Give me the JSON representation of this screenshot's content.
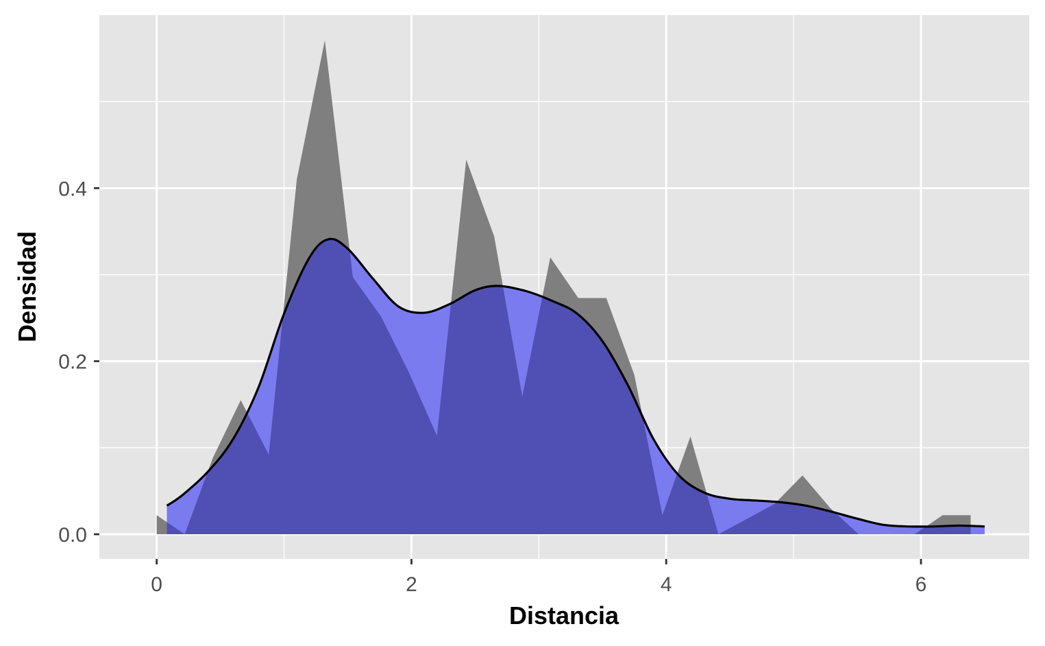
{
  "chart_data": {
    "type": "area",
    "title": "",
    "xlabel": "Distancia",
    "ylabel": "Densidad",
    "xlim": [
      -0.45,
      6.85
    ],
    "ylim": [
      -0.0285,
      0.6
    ],
    "x_ticks": [
      0,
      2,
      4,
      6
    ],
    "x_tick_labels": [
      "0",
      "2",
      "4",
      "6"
    ],
    "x_minor_ticks": [
      1,
      3,
      5
    ],
    "y_ticks": [
      0.0,
      0.2,
      0.4
    ],
    "y_tick_labels": [
      "0.0",
      "0.2",
      "0.4"
    ],
    "y_minor_ticks": [
      0.1,
      0.3,
      0.5
    ],
    "grid": true,
    "legend": "none",
    "colors": {
      "panel_background": "#e5e5e5",
      "grid": "#ffffff",
      "histogram_polygon": "#7f7f7f",
      "density_fill": "#7b7bf0",
      "overlap": "#5050b4",
      "density_line": "#000000"
    },
    "series": [
      {
        "type": "area",
        "points": [
          [
            0.0,
            0.0
          ],
          [
            0.0,
            0.022
          ],
          [
            0.22,
            0.0
          ],
          [
            0.44,
            0.088
          ],
          [
            0.66,
            0.155
          ],
          [
            0.88,
            0.092
          ],
          [
            1.1,
            0.41
          ],
          [
            1.32,
            0.571
          ],
          [
            1.54,
            0.297
          ],
          [
            1.76,
            0.252
          ],
          [
            1.98,
            0.187
          ],
          [
            2.2,
            0.114
          ],
          [
            2.43,
            0.433
          ],
          [
            2.65,
            0.344
          ],
          [
            2.87,
            0.159
          ],
          [
            3.09,
            0.32
          ],
          [
            3.31,
            0.273
          ],
          [
            3.53,
            0.273
          ],
          [
            3.75,
            0.184
          ],
          [
            3.97,
            0.022
          ],
          [
            4.19,
            0.113
          ],
          [
            4.41,
            0.0
          ],
          [
            4.63,
            0.0175
          ],
          [
            4.85,
            0.035
          ],
          [
            5.07,
            0.068
          ],
          [
            5.29,
            0.03
          ],
          [
            5.51,
            0.0
          ],
          [
            5.73,
            0.0
          ],
          [
            5.95,
            0.0
          ],
          [
            6.17,
            0.022
          ],
          [
            6.39,
            0.022
          ],
          [
            6.39,
            0.0
          ]
        ]
      },
      {
        "type": "density",
        "x": [
          0.08,
          0.2,
          0.4,
          0.6,
          0.8,
          1.0,
          1.2,
          1.35,
          1.5,
          1.7,
          1.9,
          2.1,
          2.3,
          2.5,
          2.68,
          2.9,
          3.1,
          3.3,
          3.5,
          3.7,
          3.9,
          4.1,
          4.3,
          4.5,
          4.7,
          4.9,
          5.1,
          5.3,
          5.5,
          5.7,
          5.9,
          6.1,
          6.3,
          6.5
        ],
        "y": [
          0.033,
          0.045,
          0.072,
          0.11,
          0.17,
          0.255,
          0.32,
          0.341,
          0.33,
          0.295,
          0.263,
          0.256,
          0.266,
          0.282,
          0.287,
          0.281,
          0.27,
          0.255,
          0.223,
          0.172,
          0.11,
          0.068,
          0.048,
          0.041,
          0.039,
          0.037,
          0.033,
          0.026,
          0.018,
          0.011,
          0.009,
          0.009,
          0.01,
          0.009
        ]
      }
    ]
  }
}
